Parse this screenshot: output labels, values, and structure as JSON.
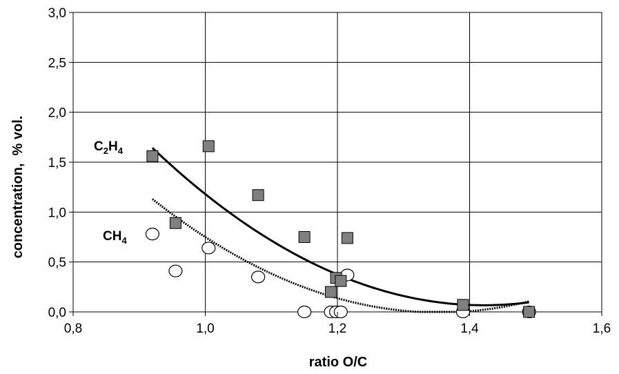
{
  "chart_data": {
    "type": "scatter",
    "title": "",
    "xlabel": "ratio O/C",
    "ylabel": "concentration,  % vol.",
    "xlim": [
      0.8,
      1.6
    ],
    "ylim": [
      0.0,
      3.0
    ],
    "x_ticks": [
      0.8,
      1.0,
      1.2,
      1.4,
      1.6
    ],
    "y_ticks": [
      0.0,
      0.5,
      1.0,
      1.5,
      2.0,
      2.5,
      3.0
    ],
    "x_tick_labels": [
      "0,8",
      "1,0",
      "1,2",
      "1,4",
      "1,6"
    ],
    "y_tick_labels": [
      "0,0",
      "0,5",
      "1,0",
      "1,5",
      "2,0",
      "2,5",
      "3,0"
    ],
    "grid": true,
    "legend": "none",
    "series": [
      {
        "name": "C2H4",
        "label_main": "C",
        "label_sub1": "2",
        "label_mid": "H",
        "label_sub2": "4",
        "marker": "square",
        "color": "#808080",
        "x": [
          0.92,
          0.955,
          1.005,
          1.08,
          1.15,
          1.19,
          1.198,
          1.205,
          1.215,
          1.39,
          1.49
        ],
        "y": [
          1.56,
          0.89,
          1.66,
          1.17,
          0.75,
          0.2,
          0.34,
          0.31,
          0.74,
          0.07,
          0.0
        ],
        "trend": {
          "style": "solid",
          "color": "#000000",
          "x_start": 0.92,
          "x_end": 1.49,
          "a": 6.26,
          "b": -17.8,
          "c": 12.72
        }
      },
      {
        "name": "CH4",
        "label_main": "CH",
        "label_sub": "4",
        "marker": "circle",
        "color": "#ffffff",
        "x": [
          0.92,
          0.955,
          1.005,
          1.08,
          1.15,
          1.19,
          1.198,
          1.205,
          1.215,
          1.39,
          1.49
        ],
        "y": [
          0.78,
          0.41,
          0.64,
          0.35,
          0.0,
          0.0,
          0.0,
          0.0,
          0.37,
          0.0,
          0.0
        ],
        "trend": {
          "style": "dotted",
          "color": "#000000",
          "x_start": 0.92,
          "x_end": 1.49,
          "a": 6.03,
          "b": -16.33,
          "c": 11.05
        }
      }
    ]
  }
}
